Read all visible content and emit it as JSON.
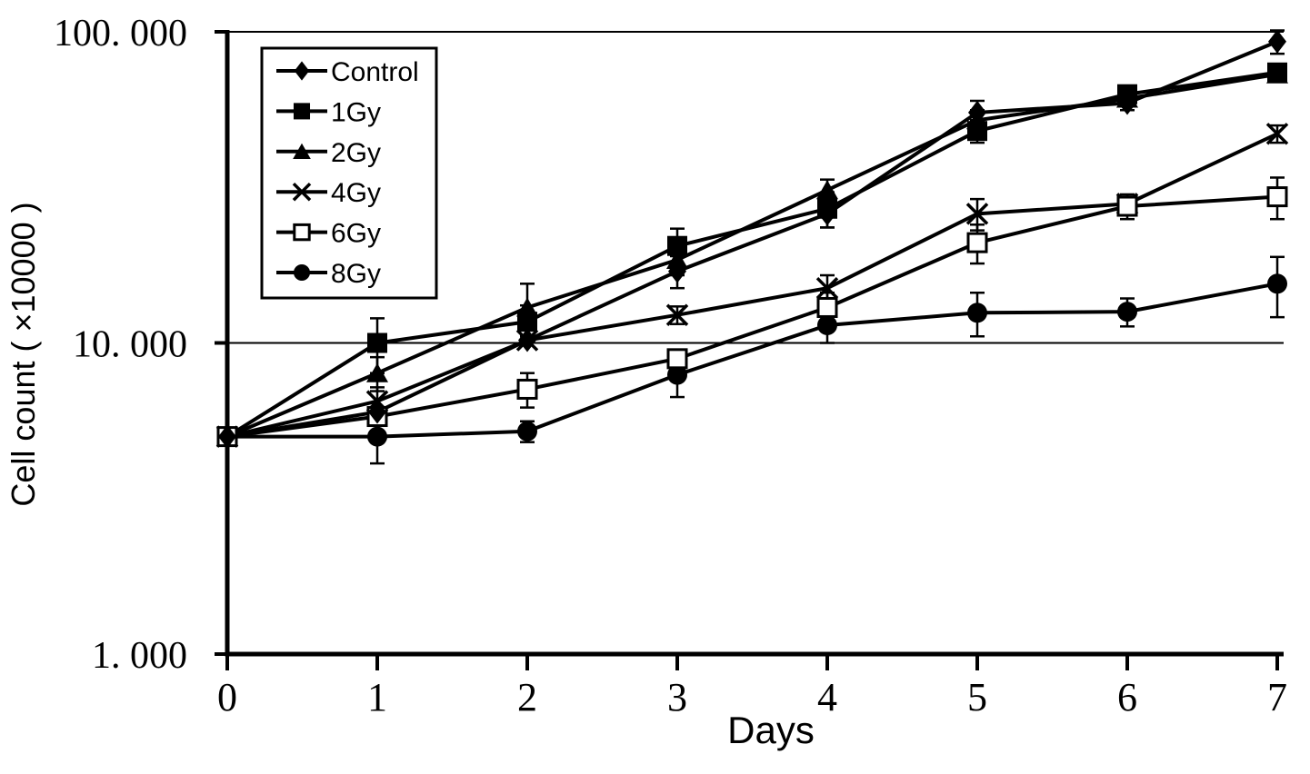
{
  "figure": {
    "background": "#ffffff",
    "ink_color": "#000000",
    "x_axis_title": "Days",
    "y_axis_title": "Cell count ( ×10000 )"
  },
  "chart_data": {
    "type": "line",
    "title": "",
    "xlabel": "Days",
    "ylabel": "Cell count ( ×10000 )",
    "x": [
      0,
      1,
      2,
      3,
      4,
      5,
      6,
      7
    ],
    "x_tick_labels": [
      "0",
      "1",
      "2",
      "3",
      "4",
      "5",
      "6",
      "7"
    ],
    "xlim": [
      0,
      7
    ],
    "y_scale": "log10",
    "ylim": [
      1,
      100
    ],
    "y_tick_values": [
      100,
      10,
      1
    ],
    "y_tick_labels": [
      "100. 000",
      "10. 000",
      "1. 000"
    ],
    "gridline_y_values": [
      100,
      10
    ],
    "legend_position": "top-left",
    "error_bars": true,
    "series": [
      {
        "name": "Control",
        "marker": "diamond-filled",
        "values": [
          5,
          6,
          10.2,
          17,
          26,
          55,
          59,
          93
        ],
        "errors": [
          0,
          0,
          0,
          2,
          2.5,
          5,
          3,
          8
        ]
      },
      {
        "name": "1Gy",
        "marker": "square-filled",
        "values": [
          5,
          10,
          11.7,
          20.5,
          27,
          48,
          63,
          74
        ],
        "errors": [
          0,
          2,
          1.5,
          2.8,
          3.5,
          4,
          3,
          4
        ]
      },
      {
        "name": "2Gy",
        "marker": "triangle-filled",
        "values": [
          5,
          8,
          13,
          18.5,
          31,
          52,
          61,
          73
        ],
        "errors": [
          0,
          1,
          2.5,
          2,
          2.5,
          4,
          3,
          4
        ]
      },
      {
        "name": "4Gy",
        "marker": "x-cross",
        "values": [
          5,
          6.5,
          10.2,
          12.3,
          15,
          26,
          28,
          47
        ],
        "errors": [
          0,
          0.7,
          0,
          0.8,
          1.5,
          3,
          2,
          3
        ]
      },
      {
        "name": "6Gy",
        "marker": "square-open",
        "values": [
          5,
          5.8,
          7.1,
          8.9,
          13,
          21,
          27.5,
          29.5
        ],
        "errors": [
          0,
          0,
          0.9,
          0.6,
          1.5,
          3,
          2.5,
          4.5
        ]
      },
      {
        "name": "8Gy",
        "marker": "circle-filled",
        "values": [
          5,
          5,
          5.2,
          7.9,
          11.4,
          12.5,
          12.6,
          15.5
        ],
        "errors": [
          0,
          0.9,
          0.4,
          1.2,
          1.4,
          2,
          1.3,
          3.4
        ]
      }
    ]
  }
}
